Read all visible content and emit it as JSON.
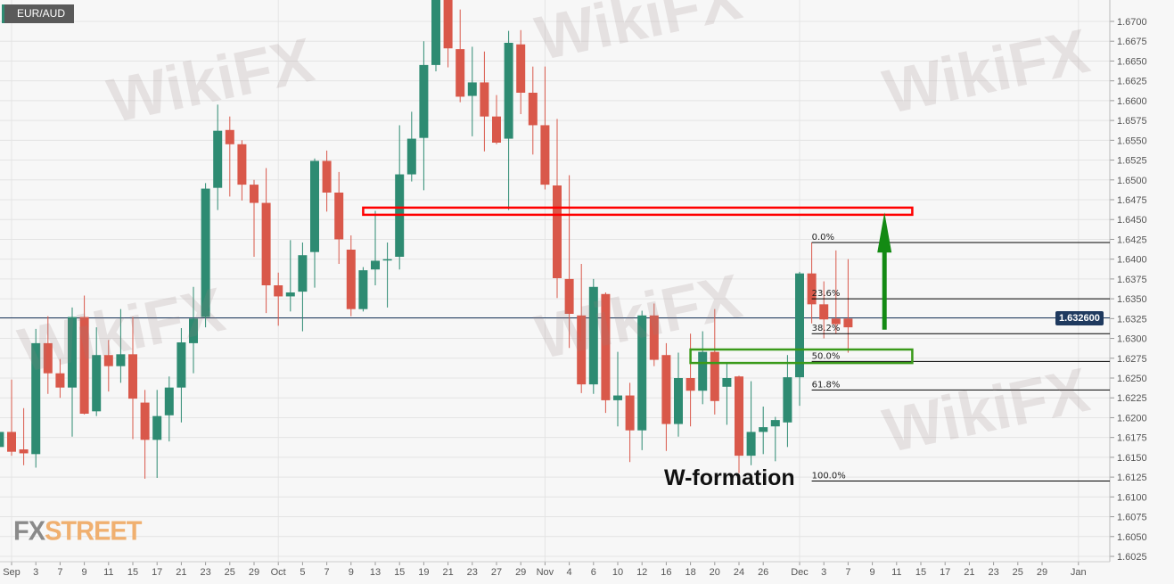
{
  "pair": "EUR/AUD",
  "current_price_label": "1.632600",
  "annotation": "W-formation",
  "logo": {
    "fx": "FX",
    "street": "STREET"
  },
  "watermark": "WikiFX",
  "colors": {
    "up": "#2e8b72",
    "down": "#d9584a",
    "background": "#f7f7f7",
    "grid": "#e4e4e4",
    "resistance": "#ff0000",
    "support": "#3a9a1a",
    "arrow": "#138a13",
    "price_line": "#1f3a5f"
  },
  "chart_data": {
    "type": "candlestick",
    "title": "EUR/AUD",
    "ylim": [
      1.6015,
      1.6727
    ],
    "grid": true,
    "y_ticks": [
      "1.6025",
      "1.6050",
      "1.6075",
      "1.6100",
      "1.6125",
      "1.6150",
      "1.6175",
      "1.6200",
      "1.6225",
      "1.6250",
      "1.6275",
      "1.6300",
      "1.6325",
      "1.6350",
      "1.6375",
      "1.6400",
      "1.6425",
      "1.6450",
      "1.6475",
      "1.6500",
      "1.6525",
      "1.6550",
      "1.6575",
      "1.6600",
      "1.6625",
      "1.6650",
      "1.6675",
      "1.6700"
    ],
    "x_ticks": [
      {
        "label": "Sep",
        "date": "Sep 1"
      },
      {
        "label": "3",
        "date": "Sep 3"
      },
      {
        "label": "7",
        "date": "Sep 7"
      },
      {
        "label": "9",
        "date": "Sep 9"
      },
      {
        "label": "11",
        "date": "Sep 11"
      },
      {
        "label": "15",
        "date": "Sep 15"
      },
      {
        "label": "17",
        "date": "Sep 17"
      },
      {
        "label": "21",
        "date": "Sep 21"
      },
      {
        "label": "23",
        "date": "Sep 23"
      },
      {
        "label": "25",
        "date": "Sep 25"
      },
      {
        "label": "29",
        "date": "Sep 29"
      },
      {
        "label": "Oct",
        "date": "Oct 1"
      },
      {
        "label": "5",
        "date": "Oct 5"
      },
      {
        "label": "7",
        "date": "Oct 7"
      },
      {
        "label": "9",
        "date": "Oct 9"
      },
      {
        "label": "13",
        "date": "Oct 13"
      },
      {
        "label": "15",
        "date": "Oct 15"
      },
      {
        "label": "19",
        "date": "Oct 19"
      },
      {
        "label": "21",
        "date": "Oct 21"
      },
      {
        "label": "23",
        "date": "Oct 23"
      },
      {
        "label": "27",
        "date": "Oct 27"
      },
      {
        "label": "29",
        "date": "Oct 29"
      },
      {
        "label": "Nov",
        "date": "Nov 2"
      },
      {
        "label": "4",
        "date": "Nov 4"
      },
      {
        "label": "6",
        "date": "Nov 6"
      },
      {
        "label": "10",
        "date": "Nov 10"
      },
      {
        "label": "12",
        "date": "Nov 12"
      },
      {
        "label": "16",
        "date": "Nov 16"
      },
      {
        "label": "18",
        "date": "Nov 18"
      },
      {
        "label": "20",
        "date": "Nov 20"
      },
      {
        "label": "24",
        "date": "Nov 24"
      },
      {
        "label": "26",
        "date": "Nov 26"
      },
      {
        "label": "Dec",
        "date": "Dec 1"
      },
      {
        "label": "3",
        "date": "Dec 3"
      },
      {
        "label": "7",
        "date": "Dec 7"
      },
      {
        "label": "9",
        "date": "Dec 9"
      },
      {
        "label": "11",
        "date": "Dec 11"
      },
      {
        "label": "15",
        "date": "Dec 15"
      },
      {
        "label": "17",
        "date": "Dec 17"
      },
      {
        "label": "21",
        "date": "Dec 21"
      },
      {
        "label": "23",
        "date": "Dec 23"
      },
      {
        "label": "25",
        "date": "Dec 25"
      },
      {
        "label": "29",
        "date": "Dec 29"
      },
      {
        "label": "Jan",
        "date": "Jan 1"
      }
    ],
    "candles": [
      [
        "Aug 31",
        1.6163,
        1.6224,
        1.6151,
        1.6182
      ],
      [
        "Sep 1",
        1.6182,
        1.6248,
        1.6152,
        1.6157
      ],
      [
        "Sep 2",
        1.616,
        1.6212,
        1.614,
        1.6155
      ],
      [
        "Sep 3",
        1.6154,
        1.6312,
        1.6137,
        1.6294
      ],
      [
        "Sep 4",
        1.6294,
        1.6328,
        1.623,
        1.6256
      ],
      [
        "Sep 7",
        1.6256,
        1.6274,
        1.6225,
        1.6238
      ],
      [
        "Sep 8",
        1.6238,
        1.6339,
        1.6176,
        1.6327
      ],
      [
        "Sep 9",
        1.6327,
        1.6354,
        1.6204,
        1.6205
      ],
      [
        "Sep 10",
        1.6208,
        1.6314,
        1.6202,
        1.6279
      ],
      [
        "Sep 11",
        1.6279,
        1.6298,
        1.6233,
        1.6265
      ],
      [
        "Sep 14",
        1.6265,
        1.6337,
        1.6244,
        1.628
      ],
      [
        "Sep 15",
        1.628,
        1.6327,
        1.6173,
        1.6224
      ],
      [
        "Sep 16",
        1.6219,
        1.6235,
        1.6123,
        1.6172
      ],
      [
        "Sep 17",
        1.6172,
        1.6235,
        1.6124,
        1.6202
      ],
      [
        "Sep 18",
        1.6203,
        1.6252,
        1.617,
        1.6238
      ],
      [
        "Sep 21",
        1.6238,
        1.6313,
        1.6194,
        1.6295
      ],
      [
        "Sep 22",
        1.6294,
        1.6365,
        1.6256,
        1.6325
      ],
      [
        "Sep 23",
        1.6327,
        1.6496,
        1.6314,
        1.6489
      ],
      [
        "Sep 24",
        1.649,
        1.6595,
        1.6462,
        1.6562
      ],
      [
        "Sep 25",
        1.6563,
        1.658,
        1.6479,
        1.6545
      ],
      [
        "Sep 28",
        1.6545,
        1.655,
        1.6474,
        1.6494
      ],
      [
        "Sep 29",
        1.6494,
        1.65,
        1.6403,
        1.6471
      ],
      [
        "Sep 30",
        1.6471,
        1.6515,
        1.6332,
        1.6367
      ],
      [
        "Oct 1",
        1.6367,
        1.6383,
        1.6316,
        1.6353
      ],
      [
        "Oct 2",
        1.6353,
        1.6424,
        1.6334,
        1.6358
      ],
      [
        "Oct 5",
        1.6359,
        1.6421,
        1.6309,
        1.6405
      ],
      [
        "Oct 6",
        1.6409,
        1.6527,
        1.6364,
        1.6524
      ],
      [
        "Oct 7",
        1.6524,
        1.6537,
        1.646,
        1.6484
      ],
      [
        "Oct 8",
        1.6484,
        1.651,
        1.6394,
        1.6425
      ],
      [
        "Oct 9",
        1.6412,
        1.643,
        1.6328,
        1.6337
      ],
      [
        "Oct 12",
        1.6337,
        1.639,
        1.6334,
        1.6386
      ],
      [
        "Oct 13",
        1.6387,
        1.6461,
        1.6367,
        1.6398
      ],
      [
        "Oct 14",
        1.6399,
        1.6421,
        1.6339,
        1.64
      ],
      [
        "Oct 15",
        1.6403,
        1.6569,
        1.6387,
        1.6507
      ],
      [
        "Oct 16",
        1.6507,
        1.6586,
        1.6498,
        1.6552
      ],
      [
        "Oct 19",
        1.6553,
        1.6675,
        1.6487,
        1.6645
      ],
      [
        "Oct 20",
        1.6645,
        1.676,
        1.6637,
        1.674
      ],
      [
        "Oct 21",
        1.6735,
        1.675,
        1.6642,
        1.6666
      ],
      [
        "Oct 22",
        1.6665,
        1.6715,
        1.6598,
        1.6605
      ],
      [
        "Oct 23",
        1.6606,
        1.6668,
        1.6555,
        1.6623
      ],
      [
        "Oct 26",
        1.6623,
        1.6662,
        1.6536,
        1.658
      ],
      [
        "Oct 27",
        1.658,
        1.6607,
        1.6545,
        1.6547
      ],
      [
        "Oct 28",
        1.6552,
        1.6688,
        1.6462,
        1.6673
      ],
      [
        "Oct 29",
        1.6671,
        1.6689,
        1.6583,
        1.661
      ],
      [
        "Oct 30",
        1.661,
        1.6643,
        1.6532,
        1.6569
      ],
      [
        "Nov 2",
        1.6569,
        1.6643,
        1.6488,
        1.6494
      ],
      [
        "Nov 3",
        1.6493,
        1.6577,
        1.6351,
        1.6376
      ],
      [
        "Nov 4",
        1.6375,
        1.6506,
        1.6288,
        1.6331
      ],
      [
        "Nov 5",
        1.6329,
        1.6394,
        1.6231,
        1.6242
      ],
      [
        "Nov 6",
        1.6242,
        1.6375,
        1.623,
        1.6365
      ],
      [
        "Nov 9",
        1.6356,
        1.6358,
        1.6206,
        1.6222
      ],
      [
        "Nov 10",
        1.6222,
        1.6283,
        1.6189,
        1.6228
      ],
      [
        "Nov 11",
        1.6228,
        1.6244,
        1.6144,
        1.6184
      ],
      [
        "Nov 12",
        1.6184,
        1.6335,
        1.6159,
        1.6329
      ],
      [
        "Nov 13",
        1.6329,
        1.6344,
        1.6265,
        1.6273
      ],
      [
        "Nov 16",
        1.6279,
        1.6294,
        1.6158,
        1.6192
      ],
      [
        "Nov 17",
        1.6192,
        1.6282,
        1.6176,
        1.625
      ],
      [
        "Nov 18",
        1.625,
        1.6306,
        1.6189,
        1.6234
      ],
      [
        "Nov 19",
        1.6234,
        1.6309,
        1.6217,
        1.6283
      ],
      [
        "Nov 20",
        1.6283,
        1.6337,
        1.6204,
        1.6221
      ],
      [
        "Nov 23",
        1.6239,
        1.6269,
        1.6191,
        1.625
      ],
      [
        "Nov 24",
        1.6252,
        1.6253,
        1.613,
        1.6152
      ],
      [
        "Nov 25",
        1.6152,
        1.6246,
        1.614,
        1.6182
      ],
      [
        "Nov 26",
        1.6182,
        1.6214,
        1.6154,
        1.6188
      ],
      [
        "Nov 27",
        1.6189,
        1.6201,
        1.6145,
        1.6197
      ],
      [
        "Nov 30",
        1.6194,
        1.6279,
        1.6163,
        1.6251
      ],
      [
        "Dec 1",
        1.6251,
        1.6384,
        1.6215,
        1.6382
      ],
      [
        "Dec 2",
        1.6382,
        1.6421,
        1.6319,
        1.6343
      ],
      [
        "Dec 3",
        1.6343,
        1.6372,
        1.63,
        1.6324
      ],
      [
        "Dec 4",
        1.6325,
        1.6411,
        1.6306,
        1.6318
      ],
      [
        "Dec 7",
        1.6325,
        1.64,
        1.6282,
        1.6314
      ]
    ],
    "current_price": 1.6326,
    "fibonacci": {
      "start_date": "Dec 2",
      "levels": [
        {
          "label": "0.0%",
          "price": 1.6421
        },
        {
          "label": "23.6%",
          "price": 1.635
        },
        {
          "label": "38.2%",
          "price": 1.6306
        },
        {
          "label": "50.0%",
          "price": 1.6271
        },
        {
          "label": "61.8%",
          "price": 1.6235
        },
        {
          "label": "100.0%",
          "price": 1.612
        }
      ]
    },
    "resistance_zone": {
      "from_date": "Oct 12",
      "to_date": "Dec 14",
      "low": 1.6456,
      "high": 1.6465
    },
    "support_zone": {
      "from_date": "Nov 18",
      "to_date": "Dec 14",
      "low": 1.6269,
      "high": 1.6286
    },
    "arrow": {
      "date": "Dec 10",
      "from": 1.6311,
      "to": 1.6459
    }
  }
}
